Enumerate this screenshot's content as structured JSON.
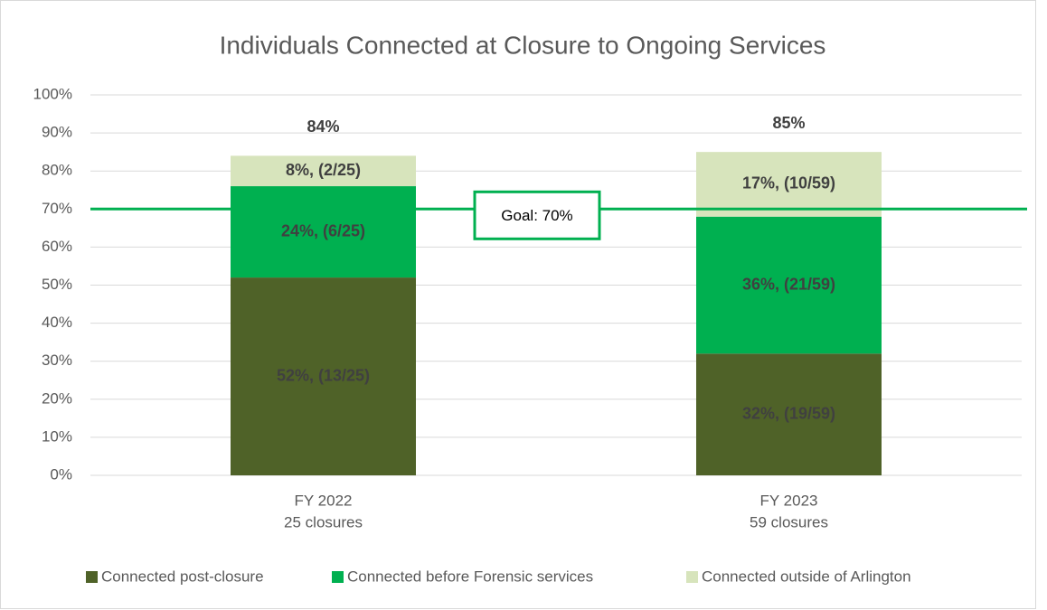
{
  "chart_data": {
    "type": "stacked_bar",
    "title": "Individuals Connected at Closure to Ongoing Services",
    "categories": [
      [
        "FY 2022",
        "25 closures"
      ],
      [
        "FY 2023",
        "59 closures"
      ]
    ],
    "series": [
      {
        "name": "Connected post-closure",
        "color": "#4f6228",
        "values": [
          52,
          32
        ],
        "value_labels": [
          "52%, (13/25)",
          "32%, (19/59)"
        ]
      },
      {
        "name": "Connected before Forensic services",
        "color": "#00b050",
        "values": [
          24,
          36
        ],
        "value_labels": [
          "24%, (6/25)",
          "36%, (21/59)"
        ]
      },
      {
        "name": "Connected outside of Arlington",
        "color": "#d7e4bc",
        "values": [
          8,
          17
        ],
        "value_labels": [
          "8%, (2/25)",
          "17%, (10/59)"
        ]
      }
    ],
    "totals": {
      "values": [
        84,
        85
      ],
      "value_labels": [
        "84%",
        "85%"
      ]
    },
    "goal": {
      "value": 70,
      "label": "Goal: 70%",
      "color": "#00b050"
    },
    "ylim": [
      0,
      100
    ],
    "yticks": [
      {
        "value": 0,
        "label": "0%"
      },
      {
        "value": 10,
        "label": "10%"
      },
      {
        "value": 20,
        "label": "20%"
      },
      {
        "value": 30,
        "label": "30%"
      },
      {
        "value": 40,
        "label": "40%"
      },
      {
        "value": 50,
        "label": "50%"
      },
      {
        "value": 60,
        "label": "60%"
      },
      {
        "value": 70,
        "label": "70%"
      },
      {
        "value": 80,
        "label": "80%"
      },
      {
        "value": 90,
        "label": "90%"
      },
      {
        "value": 100,
        "label": "100%"
      }
    ],
    "grid": true,
    "legend": "bottom"
  }
}
